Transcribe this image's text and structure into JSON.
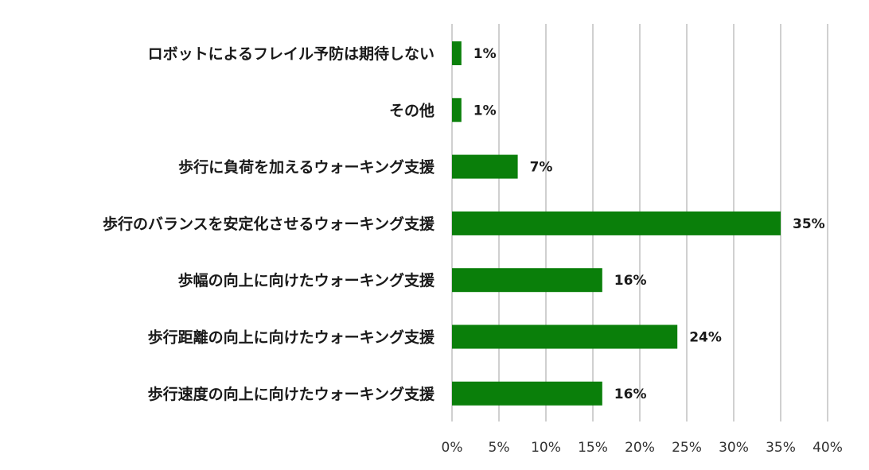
{
  "chart_data": {
    "type": "bar",
    "orientation": "horizontal",
    "categories": [
      "ロボットによるフレイル予防は期待しない",
      "その他",
      "歩行に負荷を加えるウォーキング支援",
      "歩行のバランスを安定化させるウォーキング支援",
      "歩幅の向上に向けたウォーキング支援",
      "歩行距離の向上に向けたウォーキング支援",
      "歩行速度の向上に向けたウォーキング支援"
    ],
    "values": [
      1,
      1,
      7,
      35,
      16,
      24,
      16
    ],
    "value_labels": [
      "1%",
      "1%",
      "7%",
      "35%",
      "16%",
      "24%",
      "16%"
    ],
    "xlim": [
      0,
      40
    ],
    "x_ticks": [
      0,
      5,
      10,
      15,
      20,
      25,
      30,
      35,
      40
    ],
    "x_tick_labels": [
      "0%",
      "5%",
      "10%",
      "15%",
      "20%",
      "25%",
      "30%",
      "35%",
      "40%"
    ],
    "title": "",
    "xlabel": "",
    "ylabel": "",
    "grid": "vertical",
    "legend": "none",
    "bar_color": "#0a7f0a"
  }
}
